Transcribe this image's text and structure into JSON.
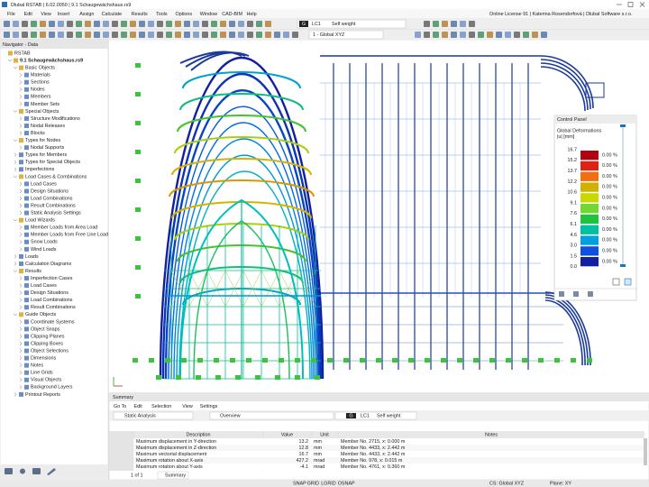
{
  "window": {
    "title": "Dlubal RSTAB | 6.02.0050 | 9.1 Schaugewächshaus.rs9"
  },
  "menu": [
    "File",
    "Edit",
    "View",
    "Insert",
    "Assign",
    "Calculate",
    "Results",
    "Tools",
    "Options",
    "Window",
    "CAD-BIM",
    "Help"
  ],
  "license": "Online License 91 | Katerina Rosendorfová | Dlubal Software s.r.o.",
  "toolbar": {
    "load_case_type": "G",
    "load_case": "LC1",
    "load_case_name": "Self weight",
    "coordinate_system": "1 - Global XYZ"
  },
  "navigator": {
    "title": "Navigator - Data",
    "tree": {
      "label": "RSTAB",
      "children": [
        {
          "label": "9.1 Schaugewächshaus.rs9",
          "children": [
            {
              "label": "Basic Objects",
              "children": [
                {
                  "label": "Materials"
                },
                {
                  "label": "Sections"
                },
                {
                  "label": "Nodes"
                },
                {
                  "label": "Members"
                },
                {
                  "label": "Member Sets"
                }
              ]
            },
            {
              "label": "Special Objects",
              "children": [
                {
                  "label": "Structure Modifications"
                },
                {
                  "label": "Nodal Releases"
                },
                {
                  "label": "Blocks"
                }
              ]
            },
            {
              "label": "Types for Nodes",
              "children": [
                {
                  "label": "Nodal Supports"
                }
              ]
            },
            {
              "label": "Types for Members"
            },
            {
              "label": "Types for Special Objects"
            },
            {
              "label": "Imperfections"
            },
            {
              "label": "Load Cases & Combinations",
              "children": [
                {
                  "label": "Load Cases"
                },
                {
                  "label": "Design Situations"
                },
                {
                  "label": "Load Combinations"
                },
                {
                  "label": "Result Combinations"
                },
                {
                  "label": "Static Analysis Settings"
                }
              ]
            },
            {
              "label": "Load Wizards",
              "children": [
                {
                  "label": "Member Loads from Area Load"
                },
                {
                  "label": "Member Loads from Free Line Load"
                },
                {
                  "label": "Snow Loads"
                },
                {
                  "label": "Wind Loads"
                }
              ]
            },
            {
              "label": "Loads"
            },
            {
              "label": "Calculation Diagrams"
            },
            {
              "label": "Results",
              "children": [
                {
                  "label": "Imperfection Cases"
                },
                {
                  "label": "Load Cases"
                },
                {
                  "label": "Design Situations"
                },
                {
                  "label": "Load Combinations"
                },
                {
                  "label": "Result Combinations"
                }
              ]
            },
            {
              "label": "Guide Objects",
              "children": [
                {
                  "label": "Coordinate Systems"
                },
                {
                  "label": "Object Snaps"
                },
                {
                  "label": "Clipping Planes"
                },
                {
                  "label": "Clipping Boxes"
                },
                {
                  "label": "Object Selections"
                },
                {
                  "label": "Dimensions"
                },
                {
                  "label": "Notes"
                },
                {
                  "label": "Line Grids"
                },
                {
                  "label": "Visual Objects"
                },
                {
                  "label": "Background Layers"
                }
              ]
            },
            {
              "label": "Printout Reports"
            }
          ]
        }
      ]
    }
  },
  "control_panel": {
    "title": "Control Panel",
    "section": "Global Deformations",
    "unit": "|u| [mm]",
    "values": [
      "16.7",
      "15.2",
      "13.7",
      "12.2",
      "10.6",
      "9.1",
      "7.6",
      "6.1",
      "4.6",
      "3.0",
      "1.5",
      "0.0"
    ],
    "bands": [
      {
        "color": "#b00010",
        "percent": "0.00 %"
      },
      {
        "color": "#e02010",
        "percent": "0.00 %"
      },
      {
        "color": "#f07010",
        "percent": "0.00 %"
      },
      {
        "color": "#d0b000",
        "percent": "0.00 %"
      },
      {
        "color": "#c8d800",
        "percent": "0.00 %"
      },
      {
        "color": "#70d830",
        "percent": "0.00 %"
      },
      {
        "color": "#20c040",
        "percent": "0.00 %"
      },
      {
        "color": "#00c0a0",
        "percent": "0.00 %"
      },
      {
        "color": "#00a0e0",
        "percent": "0.00 %"
      },
      {
        "color": "#1050e0",
        "percent": "0.00 %"
      },
      {
        "color": "#1020a0",
        "percent": "0.00 %"
      }
    ]
  },
  "summary": {
    "title": "Summary",
    "menu": [
      "Go To",
      "Edit",
      "Selection",
      "View",
      "Settings"
    ],
    "analysis": "Static Analysis",
    "view": "Overview",
    "load_case_type": "G",
    "load_case": "LC1",
    "load_case_name": "Self weight",
    "columns": [
      "Description",
      "Value",
      "Unit",
      "Notes"
    ],
    "rows": [
      [
        "Maximum displacement in Y-direction",
        13.2,
        "mm",
        "Member No. 2715, x: 0.000 m"
      ],
      [
        "Maximum displacement in Z-direction",
        12.8,
        "mm",
        "Member No. 4433, x: 2.442 m"
      ],
      [
        "Maximum vectorial displacement",
        16.7,
        "mm",
        "Member No. 4433, x: 2.442 m"
      ],
      [
        "Maximum rotation about X-axis",
        427.2,
        "mrad",
        "Member No. 978, x: 0.015 m"
      ],
      [
        "Maximum rotation about Y-axis",
        -4.1,
        "mrad",
        "Member No. 4761, x: 0.360 m"
      ]
    ],
    "page": "1 of 1",
    "tab": "Summary"
  },
  "status_bar": {
    "toggles": [
      "SNAP",
      "GRID",
      "LGRID",
      "OSNAP"
    ],
    "cs": "CS: Global XYZ",
    "plane": "Plane: XY"
  }
}
